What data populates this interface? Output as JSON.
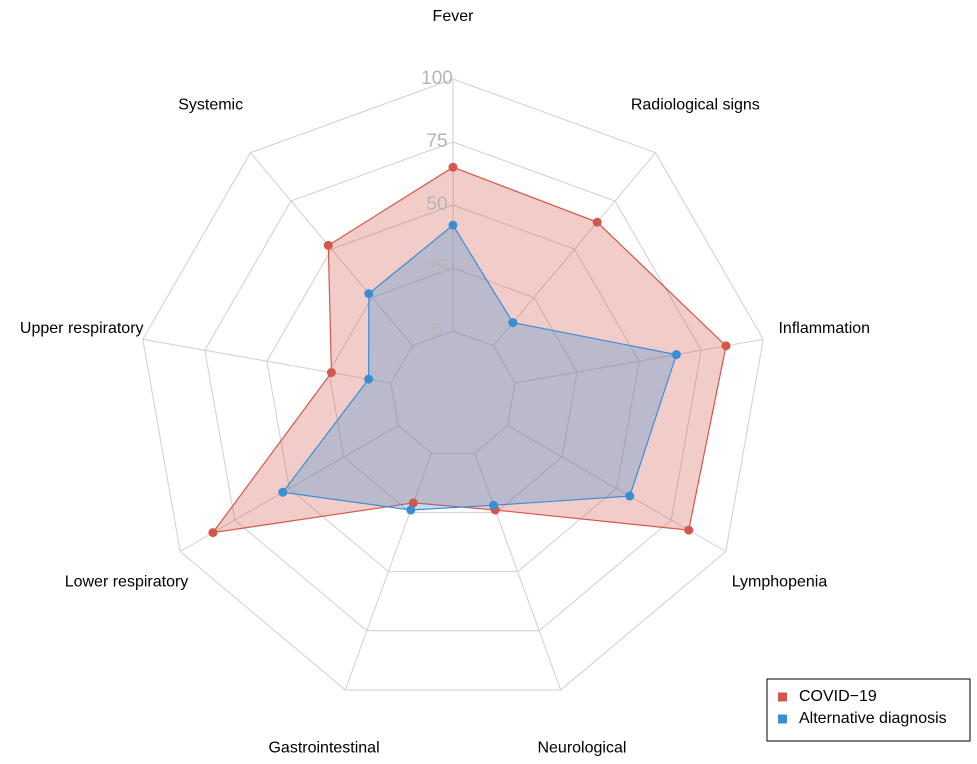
{
  "chart_data": {
    "type": "radar",
    "categories": [
      "Fever",
      "Radiological signs",
      "Inflammation",
      "Lymphopenia",
      "Neurological",
      "Gastrointestinal",
      "Lower respiratory",
      "Upper respiratory",
      "Systemic"
    ],
    "series": [
      {
        "name": "COVID−19",
        "color": "#d4574b",
        "values": [
          65,
          64,
          85,
          83,
          24,
          21,
          85,
          24,
          52
        ]
      },
      {
        "name": "Alternative diagnosis",
        "color": "#3b8ed3",
        "values": [
          42,
          12,
          65,
          56,
          22,
          24,
          53,
          9,
          27
        ]
      }
    ],
    "rlim": [
      -25,
      100
    ],
    "rticks": [
      0,
      25,
      50,
      75,
      100
    ],
    "grid": true,
    "legend": "bottom-right"
  }
}
